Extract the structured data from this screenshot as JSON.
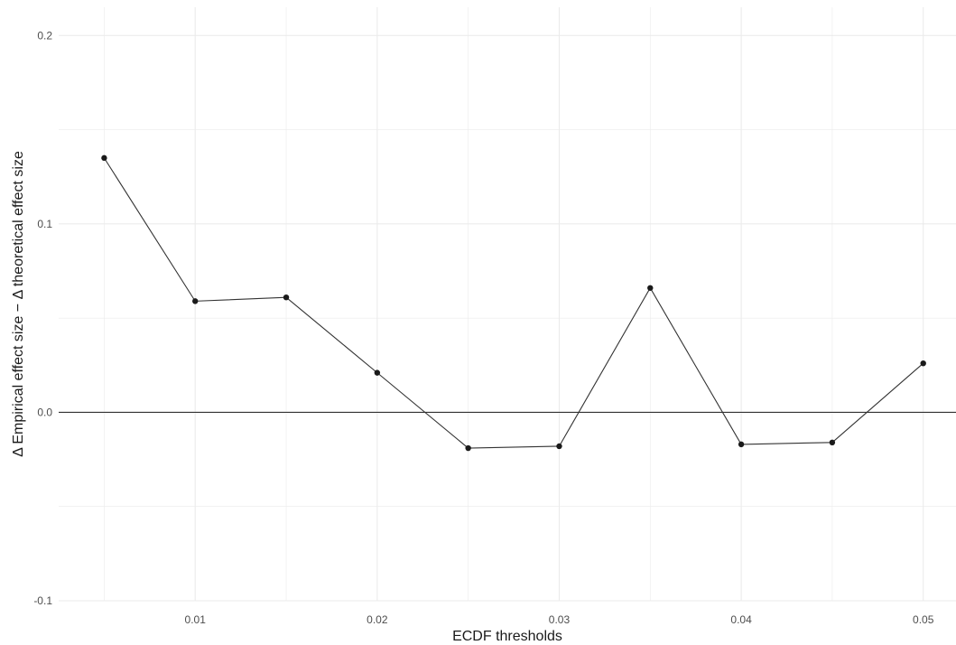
{
  "chart_data": {
    "type": "line",
    "title": "",
    "xlabel": "ECDF thresholds",
    "ylabel": "Δ Empirical effect size − Δ theoretical effect size",
    "xlim": [
      0.0025,
      0.0518
    ],
    "ylim": [
      -0.1,
      0.215
    ],
    "x_ticks": [
      0.01,
      0.02,
      0.03,
      0.04,
      0.05
    ],
    "x_tick_labels": [
      "0.01",
      "0.02",
      "0.03",
      "0.04",
      "0.05"
    ],
    "y_ticks": [
      -0.1,
      0.0,
      0.1,
      0.2
    ],
    "y_tick_labels": [
      "-0.1",
      "0.0",
      "0.1",
      "0.2"
    ],
    "grid": true,
    "reference_line_y": 0.0,
    "series": [
      {
        "x": [
          0.005,
          0.01,
          0.015,
          0.02,
          0.025,
          0.03,
          0.035,
          0.04,
          0.045,
          0.05
        ],
        "y": [
          0.135,
          0.059,
          0.061,
          0.021,
          -0.019,
          -0.018,
          0.066,
          -0.017,
          -0.016,
          0.026
        ]
      }
    ],
    "colors": {
      "line": "#333333",
      "point": "#1a1a1a",
      "grid": "#ebebeb",
      "reference": "#333333"
    }
  }
}
